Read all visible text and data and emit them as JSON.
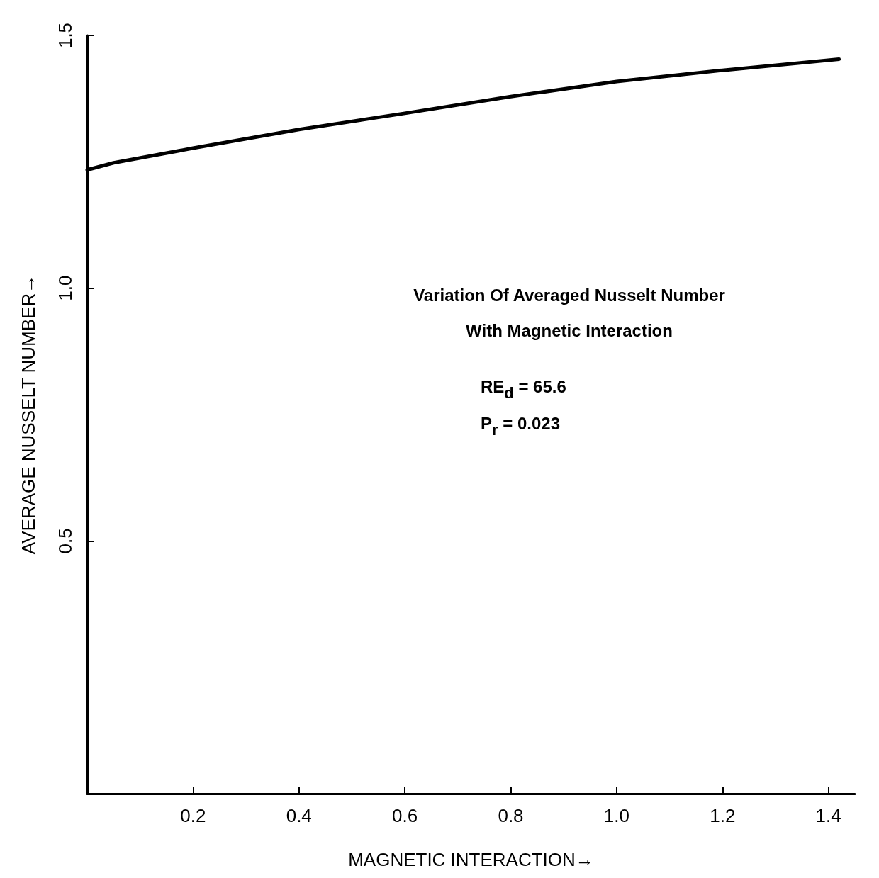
{
  "chart_data": {
    "type": "line",
    "title": "Variation Of Averaged Nusselt Number\nWith Magnetic Interaction",
    "xlabel": "MAGNETIC INTERACTION→",
    "ylabel": "AVERAGE NUSSELT NUMBER→",
    "annotations": [
      "RE$_{d}$ = 65.6",
      "P$_{r}$ = 0.023"
    ],
    "x": [
      0,
      0.05,
      0.2,
      0.4,
      0.6,
      0.8,
      1.0,
      1.2,
      1.42
    ],
    "series": [
      {
        "color": "#000000",
        "values": [
          1.234,
          1.248,
          1.277,
          1.314,
          1.346,
          1.379,
          1.409,
          1.431,
          1.453
        ]
      }
    ],
    "xlim": [
      0,
      1.45
    ],
    "xticks": [
      0.2,
      0.4,
      0.6,
      0.8,
      {
        "value": 1.0,
        "label": "1.0"
      },
      1.2,
      1.4
    ],
    "ylim": [
      0,
      1.5
    ],
    "yticks": [
      0.5,
      {
        "value": 1.0,
        "label": "1.0"
      },
      1.5
    ],
    "grid": false,
    "marker": "none",
    "line_style": "solid"
  }
}
